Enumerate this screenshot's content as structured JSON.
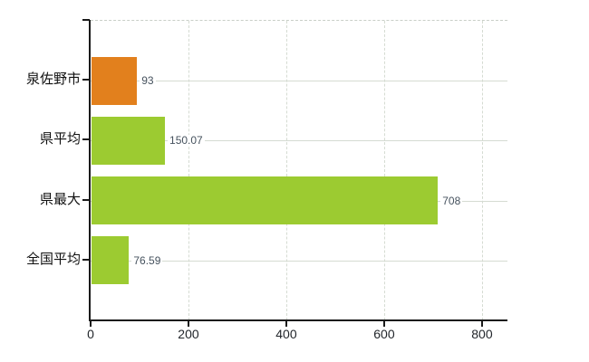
{
  "chart_data": {
    "type": "bar",
    "orientation": "horizontal",
    "title": "",
    "xlabel": "",
    "ylabel": "",
    "categories": [
      "泉佐野市",
      "県平均",
      "県最大",
      "全国平均"
    ],
    "values": [
      93,
      150.07,
      708,
      76.59
    ],
    "value_labels": [
      "93",
      "150.07",
      "708",
      "76.59"
    ],
    "bar_colors": [
      "#e2801d",
      "#9ccb31",
      "#9ccb31",
      "#9ccb31"
    ],
    "xlim": [
      0,
      852
    ],
    "x_ticks": [
      {
        "value": 0,
        "label": "0"
      },
      {
        "value": 200,
        "label": "200"
      },
      {
        "value": 400,
        "label": "400"
      },
      {
        "value": 600,
        "label": "600"
      },
      {
        "value": 800,
        "label": "800"
      }
    ],
    "grid": {
      "vertical": "dashed",
      "horizontal": "solid",
      "top_border": "dashed"
    },
    "legend": null
  },
  "colors": {
    "background": "#ffffff",
    "axis": "#1a1a1a",
    "gridline": "#d5dbd2",
    "highlight_bar": "#e2801d",
    "default_bar": "#9ccb31",
    "value_label": "#46525e",
    "tick_label": "#22262b",
    "category_label": "#111111"
  }
}
